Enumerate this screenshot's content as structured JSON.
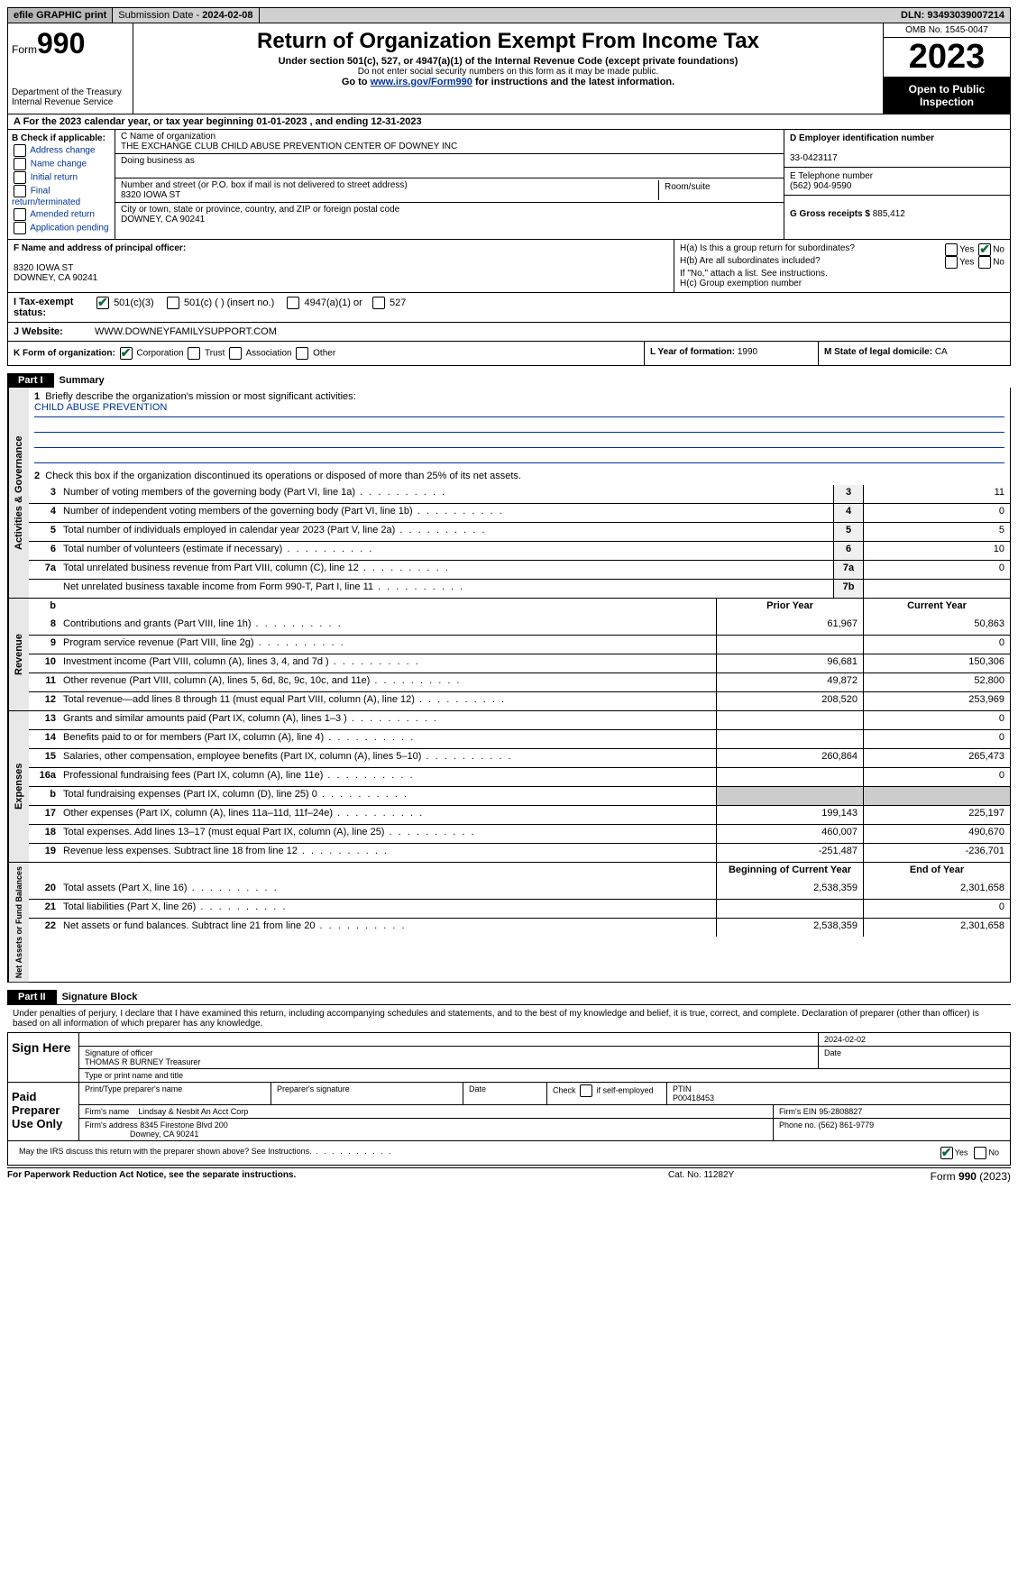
{
  "top": {
    "efile": "efile GRAPHIC print",
    "submission_label": "Submission Date - ",
    "submission_date": "2024-02-08",
    "dln_label": "DLN: ",
    "dln": "93493039007214"
  },
  "header": {
    "form_prefix": "Form",
    "form_num": "990",
    "dept": "Department of the Treasury\nInternal Revenue Service",
    "title": "Return of Organization Exempt From Income Tax",
    "subtitle": "Under section 501(c), 527, or 4947(a)(1) of the Internal Revenue Code (except private foundations)",
    "ssn_note": "Do not enter social security numbers on this form as it may be made public.",
    "goto_prefix": "Go to ",
    "goto_link": "www.irs.gov/Form990",
    "goto_suffix": " for instructions and the latest information.",
    "omb": "OMB No. 1545-0047",
    "year": "2023",
    "inspect": "Open to Public Inspection"
  },
  "row_a": {
    "label": "A For the 2023 calendar year, or tax year beginning ",
    "begin": "01-01-2023",
    "mid": "   , and ending ",
    "end": "12-31-2023"
  },
  "col_b": {
    "label": "B Check if applicable:",
    "opts": [
      "Address change",
      "Name change",
      "Initial return",
      "Final return/terminated",
      "Amended return",
      "Application pending"
    ]
  },
  "col_c": {
    "name_label": "C Name of organization",
    "name": "THE EXCHANGE CLUB CHILD ABUSE PREVENTION CENTER OF DOWNEY INC",
    "dba_label": "Doing business as",
    "addr_label": "Number and street (or P.O. box if mail is not delivered to street address)",
    "room_label": "Room/suite",
    "addr": "8320 IOWA ST",
    "city_label": "City or town, state or province, country, and ZIP or foreign postal code",
    "city": "DOWNEY, CA  90241"
  },
  "col_d": {
    "ein_label": "D Employer identification number",
    "ein": "33-0423117",
    "phone_label": "E Telephone number",
    "phone": "(562) 904-9590",
    "receipts_label": "G Gross receipts $ ",
    "receipts": "885,412"
  },
  "row_f": {
    "label": "F  Name and address of principal officer:",
    "addr1": "8320 IOWA ST",
    "addr2": "DOWNEY, CA  90241"
  },
  "row_h": {
    "ha": "H(a)  Is this a group return for subordinates?",
    "hb": "H(b)  Are all subordinates included?",
    "hb_note": "If \"No,\" attach a list. See instructions.",
    "hc": "H(c)  Group exemption number",
    "yes": "Yes",
    "no": "No"
  },
  "row_i": {
    "label": "I   Tax-exempt status:",
    "o1": "501(c)(3)",
    "o2": "501(c) (   ) (insert no.)",
    "o3": "4947(a)(1) or",
    "o4": "527"
  },
  "row_j": {
    "label": "J   Website:",
    "val": "WWW.DOWNEYFAMILYSUPPORT.COM"
  },
  "row_k": {
    "label": "K Form of organization:",
    "o1": "Corporation",
    "o2": "Trust",
    "o3": "Association",
    "o4": "Other"
  },
  "row_l": {
    "label": "L Year of formation: ",
    "val": "1990"
  },
  "row_m": {
    "label": "M State of legal domicile: ",
    "val": "CA"
  },
  "part1": {
    "hdr": "Part I",
    "title": "Summary",
    "q1": "Briefly describe the organization's mission or most significant activities:",
    "mission": "CHILD ABUSE PREVENTION",
    "q2": "Check this box           if the organization discontinued its operations or disposed of more than 25% of its net assets.",
    "prior": "Prior Year",
    "current": "Current Year",
    "begin": "Beginning of Current Year",
    "end": "End of Year"
  },
  "gov": {
    "label": "Activities & Governance",
    "lines": [
      {
        "n": "3",
        "d": "Number of voting members of the governing body (Part VI, line 1a)",
        "box": "3",
        "v": "11"
      },
      {
        "n": "4",
        "d": "Number of independent voting members of the governing body (Part VI, line 1b)",
        "box": "4",
        "v": "0"
      },
      {
        "n": "5",
        "d": "Total number of individuals employed in calendar year 2023 (Part V, line 2a)",
        "box": "5",
        "v": "5"
      },
      {
        "n": "6",
        "d": "Total number of volunteers (estimate if necessary)",
        "box": "6",
        "v": "10"
      },
      {
        "n": "7a",
        "d": "Total unrelated business revenue from Part VIII, column (C), line 12",
        "box": "7a",
        "v": "0"
      },
      {
        "n": "",
        "d": "Net unrelated business taxable income from Form 990-T, Part I, line 11",
        "box": "7b",
        "v": ""
      }
    ]
  },
  "rev": {
    "label": "Revenue",
    "lines": [
      {
        "n": "8",
        "d": "Contributions and grants (Part VIII, line 1h)",
        "p": "61,967",
        "c": "50,863"
      },
      {
        "n": "9",
        "d": "Program service revenue (Part VIII, line 2g)",
        "p": "",
        "c": "0"
      },
      {
        "n": "10",
        "d": "Investment income (Part VIII, column (A), lines 3, 4, and 7d )",
        "p": "96,681",
        "c": "150,306"
      },
      {
        "n": "11",
        "d": "Other revenue (Part VIII, column (A), lines 5, 6d, 8c, 9c, 10c, and 11e)",
        "p": "49,872",
        "c": "52,800"
      },
      {
        "n": "12",
        "d": "Total revenue—add lines 8 through 11 (must equal Part VIII, column (A), line 12)",
        "p": "208,520",
        "c": "253,969"
      }
    ]
  },
  "exp": {
    "label": "Expenses",
    "lines": [
      {
        "n": "13",
        "d": "Grants and similar amounts paid (Part IX, column (A), lines 1–3 )",
        "p": "",
        "c": "0"
      },
      {
        "n": "14",
        "d": "Benefits paid to or for members (Part IX, column (A), line 4)",
        "p": "",
        "c": "0"
      },
      {
        "n": "15",
        "d": "Salaries, other compensation, employee benefits (Part IX, column (A), lines 5–10)",
        "p": "260,864",
        "c": "265,473"
      },
      {
        "n": "16a",
        "d": "Professional fundraising fees (Part IX, column (A), line 11e)",
        "p": "",
        "c": "0"
      },
      {
        "n": "b",
        "d": "Total fundraising expenses (Part IX, column (D), line 25) 0",
        "p": "SHADE",
        "c": "SHADE"
      },
      {
        "n": "17",
        "d": "Other expenses (Part IX, column (A), lines 11a–11d, 11f–24e)",
        "p": "199,143",
        "c": "225,197"
      },
      {
        "n": "18",
        "d": "Total expenses. Add lines 13–17 (must equal Part IX, column (A), line 25)",
        "p": "460,007",
        "c": "490,670"
      },
      {
        "n": "19",
        "d": "Revenue less expenses. Subtract line 18 from line 12",
        "p": "-251,487",
        "c": "-236,701"
      }
    ]
  },
  "net": {
    "label": "Net Assets or Fund Balances",
    "lines": [
      {
        "n": "20",
        "d": "Total assets (Part X, line 16)",
        "p": "2,538,359",
        "c": "2,301,658"
      },
      {
        "n": "21",
        "d": "Total liabilities (Part X, line 26)",
        "p": "",
        "c": "0"
      },
      {
        "n": "22",
        "d": "Net assets or fund balances. Subtract line 21 from line 20",
        "p": "2,538,359",
        "c": "2,301,658"
      }
    ]
  },
  "part2": {
    "hdr": "Part II",
    "title": "Signature Block",
    "penalty": "Under penalties of perjury, I declare that I have examined this return, including accompanying schedules and statements, and to the best of my knowledge and belief, it is true, correct, and complete. Declaration of preparer (other than officer) is based on all information of which preparer has any knowledge."
  },
  "sign": {
    "side": "Sign Here",
    "date": "2024-02-02",
    "sig_label": "Signature of officer",
    "date_label": "Date",
    "name": "THOMAS R BURNEY Treasurer",
    "name_label": "Type or print name and title"
  },
  "prep": {
    "side": "Paid Preparer Use Only",
    "h1": "Print/Type preparer's name",
    "h2": "Preparer's signature",
    "h3": "Date",
    "h4_pre": "Check",
    "h4_post": "if self-employed",
    "ptin_label": "PTIN",
    "ptin": "P00418453",
    "firm_label": "Firm's name",
    "firm": "Lindsay & Nesbit An Acct Corp",
    "ein_label": "Firm's EIN ",
    "ein": "95-2808827",
    "addr_label": "Firm's address ",
    "addr1": "8345 Firestone Blvd 200",
    "addr2": "Downey, CA  90241",
    "phone_label": "Phone no. ",
    "phone": "(562) 861-9779"
  },
  "discuss": {
    "q": "May the IRS discuss this return with the preparer shown above? See Instructions.",
    "yes": "Yes",
    "no": "No"
  },
  "footer": {
    "l": "For Paperwork Reduction Act Notice, see the separate instructions.",
    "m": "Cat. No. 11282Y",
    "r_pre": "Form ",
    "r_num": "990",
    "r_post": " (2023)"
  }
}
